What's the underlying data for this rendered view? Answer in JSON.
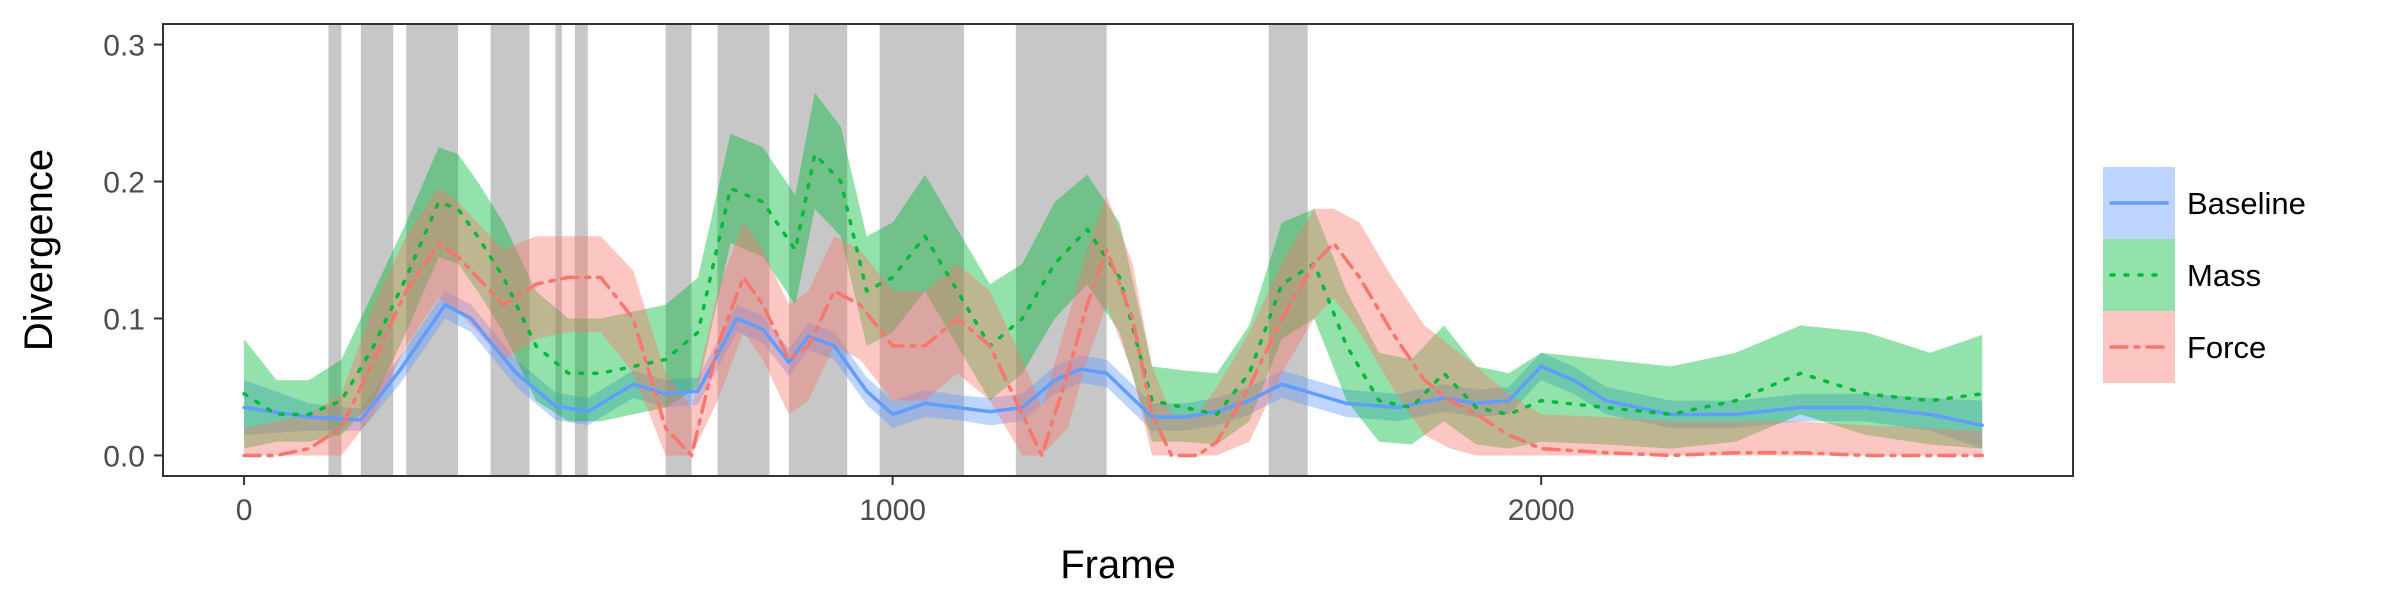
{
  "chart_data": {
    "type": "line",
    "xlabel": "Frame",
    "ylabel": "Divergence",
    "xlim": [
      -125,
      2820
    ],
    "ylim": [
      -0.015,
      0.315
    ],
    "x_ticks": [
      0,
      1000,
      2000
    ],
    "x_tick_labels": [
      "0",
      "1000",
      "2000"
    ],
    "y_ticks": [
      0.0,
      0.1,
      0.2,
      0.3
    ],
    "y_tick_labels": [
      "0.0",
      "0.1",
      "0.2",
      "0.3"
    ],
    "grid": false,
    "legend_position": "right",
    "shaded_intervals": [
      [
        130,
        150
      ],
      [
        180,
        230
      ],
      [
        250,
        330
      ],
      [
        380,
        440
      ],
      [
        480,
        490
      ],
      [
        510,
        530
      ],
      [
        650,
        690
      ],
      [
        730,
        810
      ],
      [
        840,
        930
      ],
      [
        980,
        1110
      ],
      [
        1190,
        1330
      ],
      [
        1580,
        1640
      ]
    ],
    "series": [
      {
        "name": "Baseline",
        "color": "#619CFF",
        "line_style": "solid",
        "x": [
          0,
          100,
          180,
          240,
          310,
          350,
          420,
          480,
          530,
          600,
          650,
          700,
          760,
          800,
          840,
          870,
          910,
          960,
          1000,
          1050,
          1100,
          1150,
          1200,
          1250,
          1290,
          1330,
          1400,
          1450,
          1500,
          1550,
          1600,
          1650,
          1700,
          1780,
          1850,
          1900,
          1950,
          2000,
          2050,
          2100,
          2200,
          2300,
          2400,
          2500,
          2600,
          2680
        ],
        "y": [
          0.035,
          0.028,
          0.026,
          0.062,
          0.11,
          0.1,
          0.06,
          0.036,
          0.032,
          0.052,
          0.045,
          0.047,
          0.1,
          0.092,
          0.068,
          0.087,
          0.08,
          0.047,
          0.03,
          0.038,
          0.035,
          0.032,
          0.035,
          0.055,
          0.063,
          0.06,
          0.028,
          0.028,
          0.032,
          0.04,
          0.052,
          0.045,
          0.038,
          0.035,
          0.042,
          0.038,
          0.04,
          0.065,
          0.055,
          0.04,
          0.03,
          0.03,
          0.035,
          0.035,
          0.03,
          0.022
        ],
        "lower": [
          0.015,
          0.018,
          0.018,
          0.052,
          0.1,
          0.09,
          0.05,
          0.026,
          0.022,
          0.042,
          0.035,
          0.037,
          0.09,
          0.082,
          0.058,
          0.077,
          0.07,
          0.037,
          0.02,
          0.028,
          0.026,
          0.022,
          0.025,
          0.045,
          0.053,
          0.05,
          0.018,
          0.018,
          0.022,
          0.03,
          0.042,
          0.035,
          0.028,
          0.025,
          0.032,
          0.028,
          0.03,
          0.055,
          0.045,
          0.03,
          0.02,
          0.02,
          0.025,
          0.025,
          0.018,
          0.005
        ],
        "upper": [
          0.055,
          0.038,
          0.034,
          0.072,
          0.12,
          0.11,
          0.07,
          0.046,
          0.042,
          0.062,
          0.055,
          0.057,
          0.11,
          0.102,
          0.078,
          0.097,
          0.09,
          0.057,
          0.04,
          0.048,
          0.044,
          0.042,
          0.045,
          0.065,
          0.073,
          0.07,
          0.038,
          0.038,
          0.042,
          0.05,
          0.062,
          0.055,
          0.048,
          0.045,
          0.052,
          0.048,
          0.05,
          0.075,
          0.065,
          0.05,
          0.04,
          0.04,
          0.045,
          0.045,
          0.042,
          0.04
        ]
      },
      {
        "name": "Mass",
        "color": "#00BA38",
        "line_style": "dotted",
        "x": [
          0,
          50,
          100,
          150,
          200,
          250,
          300,
          330,
          360,
          400,
          450,
          500,
          550,
          600,
          650,
          700,
          750,
          800,
          850,
          880,
          920,
          960,
          1000,
          1050,
          1100,
          1150,
          1200,
          1250,
          1300,
          1350,
          1400,
          1450,
          1500,
          1550,
          1600,
          1650,
          1700,
          1750,
          1800,
          1850,
          1900,
          1950,
          2000,
          2100,
          2200,
          2300,
          2400,
          2500,
          2600,
          2680
        ],
        "y": [
          0.045,
          0.03,
          0.03,
          0.04,
          0.08,
          0.13,
          0.185,
          0.18,
          0.16,
          0.13,
          0.08,
          0.06,
          0.06,
          0.065,
          0.07,
          0.09,
          0.195,
          0.185,
          0.15,
          0.22,
          0.2,
          0.12,
          0.13,
          0.16,
          0.12,
          0.08,
          0.1,
          0.14,
          0.165,
          0.13,
          0.04,
          0.035,
          0.03,
          0.06,
          0.125,
          0.14,
          0.08,
          0.04,
          0.035,
          0.06,
          0.035,
          0.03,
          0.04,
          0.035,
          0.03,
          0.04,
          0.06,
          0.045,
          0.04,
          0.045
        ],
        "lower": [
          0.005,
          0.01,
          0.01,
          0.015,
          0.04,
          0.09,
          0.145,
          0.14,
          0.12,
          0.09,
          0.04,
          0.025,
          0.025,
          0.03,
          0.035,
          0.05,
          0.155,
          0.145,
          0.11,
          0.18,
          0.16,
          0.08,
          0.09,
          0.12,
          0.08,
          0.04,
          0.06,
          0.1,
          0.125,
          0.09,
          0.01,
          0.01,
          0.008,
          0.025,
          0.085,
          0.1,
          0.04,
          0.01,
          0.008,
          0.025,
          0.008,
          0.005,
          0.01,
          0.008,
          0.005,
          0.01,
          0.03,
          0.015,
          0.008,
          0.005
        ],
        "upper": [
          0.085,
          0.055,
          0.055,
          0.07,
          0.12,
          0.17,
          0.225,
          0.22,
          0.2,
          0.17,
          0.12,
          0.1,
          0.1,
          0.105,
          0.11,
          0.13,
          0.235,
          0.225,
          0.19,
          0.265,
          0.24,
          0.16,
          0.17,
          0.205,
          0.165,
          0.125,
          0.14,
          0.185,
          0.205,
          0.17,
          0.065,
          0.062,
          0.06,
          0.095,
          0.17,
          0.18,
          0.12,
          0.075,
          0.07,
          0.095,
          0.065,
          0.06,
          0.075,
          0.07,
          0.065,
          0.075,
          0.095,
          0.09,
          0.075,
          0.088
        ]
      },
      {
        "name": "Force",
        "color": "#F8766D",
        "line_style": "dashdot",
        "x": [
          0,
          50,
          100,
          150,
          200,
          250,
          300,
          330,
          360,
          400,
          450,
          500,
          550,
          600,
          650,
          690,
          730,
          770,
          800,
          840,
          870,
          910,
          950,
          1000,
          1050,
          1100,
          1150,
          1200,
          1230,
          1270,
          1300,
          1330,
          1370,
          1400,
          1430,
          1470,
          1500,
          1550,
          1600,
          1650,
          1680,
          1720,
          1770,
          1820,
          1860,
          1900,
          1950,
          2000,
          2100,
          2200,
          2300,
          2400,
          2500,
          2600,
          2680
        ],
        "y": [
          0.0,
          0.0,
          0.005,
          0.02,
          0.07,
          0.12,
          0.155,
          0.145,
          0.13,
          0.11,
          0.125,
          0.13,
          0.13,
          0.1,
          0.02,
          0.0,
          0.08,
          0.13,
          0.11,
          0.07,
          0.08,
          0.12,
          0.11,
          0.08,
          0.08,
          0.1,
          0.08,
          0.03,
          0.0,
          0.06,
          0.11,
          0.15,
          0.1,
          0.03,
          0.0,
          0.0,
          0.01,
          0.05,
          0.1,
          0.14,
          0.155,
          0.13,
          0.09,
          0.055,
          0.04,
          0.03,
          0.015,
          0.005,
          0.002,
          0.0,
          0.002,
          0.002,
          0.0,
          0.0,
          0.0
        ],
        "lower": [
          0.0,
          0.0,
          0.0,
          0.0,
          0.03,
          0.08,
          0.115,
          0.105,
          0.09,
          0.07,
          0.085,
          0.09,
          0.09,
          0.06,
          0.0,
          0.0,
          0.04,
          0.09,
          0.07,
          0.03,
          0.04,
          0.08,
          0.07,
          0.04,
          0.04,
          0.06,
          0.04,
          0.0,
          0.0,
          0.02,
          0.07,
          0.11,
          0.06,
          0.0,
          0.0,
          0.0,
          0.0,
          0.01,
          0.06,
          0.1,
          0.115,
          0.09,
          0.05,
          0.015,
          0.005,
          0.0,
          0.0,
          0.0,
          0.0,
          0.0,
          0.0,
          0.0,
          0.0,
          0.0,
          0.0
        ],
        "upper": [
          0.02,
          0.025,
          0.03,
          0.045,
          0.11,
          0.16,
          0.195,
          0.185,
          0.17,
          0.15,
          0.16,
          0.16,
          0.16,
          0.135,
          0.06,
          0.035,
          0.12,
          0.17,
          0.15,
          0.11,
          0.12,
          0.16,
          0.15,
          0.12,
          0.12,
          0.14,
          0.12,
          0.07,
          0.035,
          0.1,
          0.15,
          0.19,
          0.14,
          0.065,
          0.03,
          0.03,
          0.05,
          0.09,
          0.14,
          0.18,
          0.18,
          0.17,
          0.13,
          0.095,
          0.08,
          0.065,
          0.045,
          0.03,
          0.028,
          0.025,
          0.025,
          0.025,
          0.022,
          0.02,
          0.018
        ]
      }
    ]
  }
}
